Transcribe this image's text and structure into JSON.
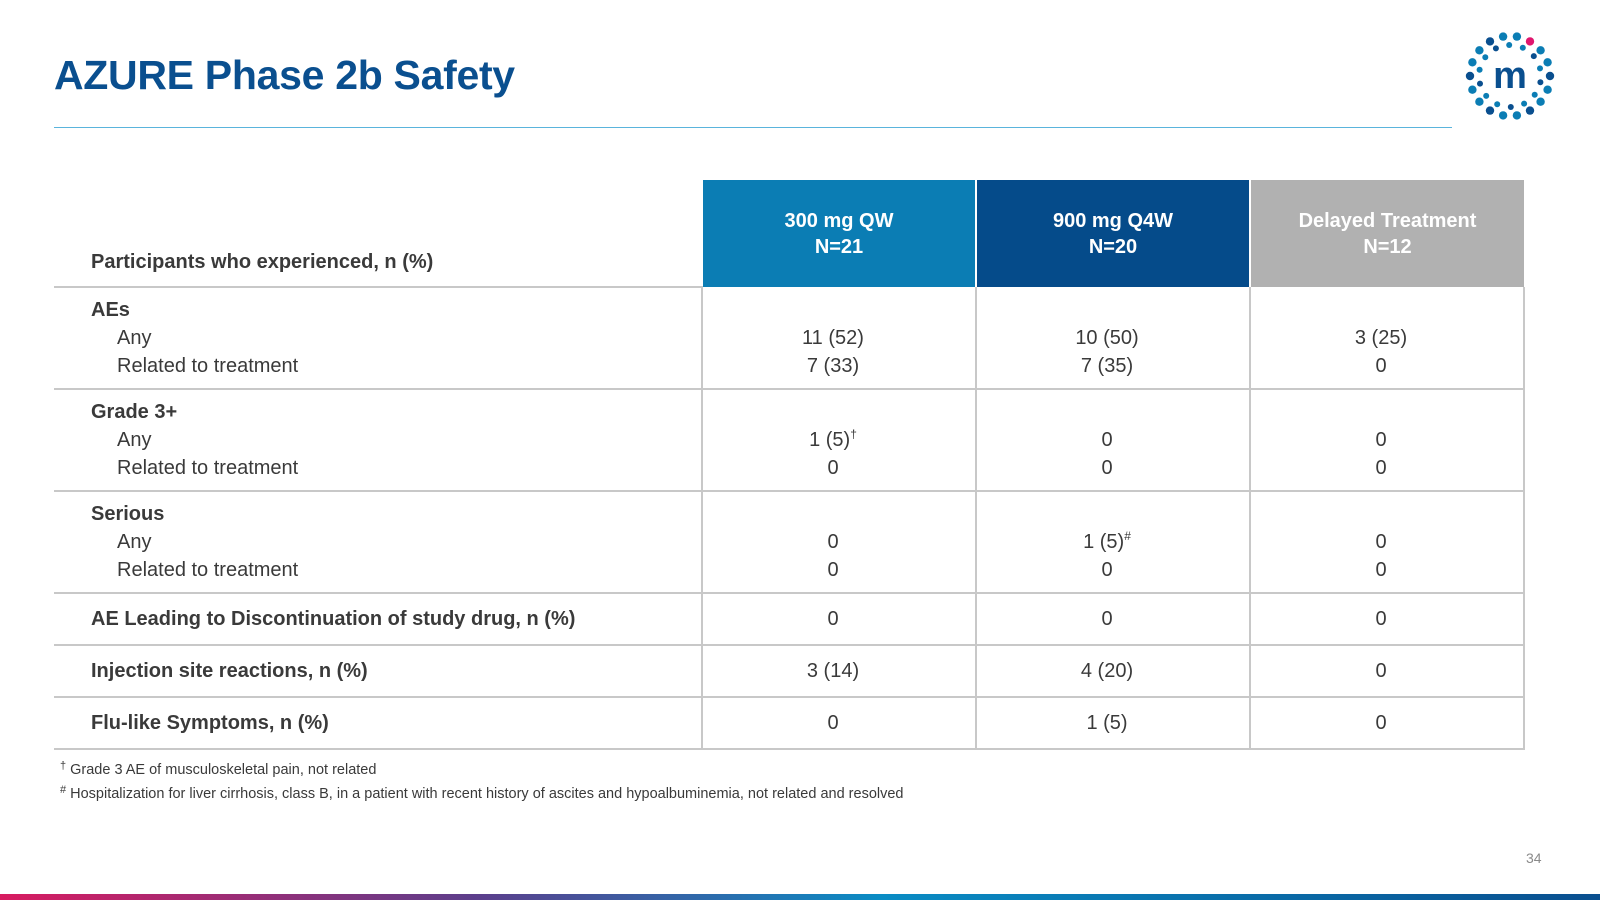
{
  "title": "AZURE Phase 2b Safety",
  "page_number": "34",
  "logo": {
    "letter": "m",
    "dot_color": "#0b7db4",
    "accent_color": "#e0166e"
  },
  "table": {
    "header_label": "Participants who experienced, n (%)",
    "columns": [
      {
        "line1": "300 mg QW",
        "line2": "N=21"
      },
      {
        "line1": "900 mg Q4W",
        "line2": "N=20"
      },
      {
        "line1": "Delayed Treatment",
        "line2": "N=12"
      }
    ],
    "groups": [
      {
        "label": "AEs",
        "any_label": "Any",
        "related_label": "Related to treatment",
        "any": [
          {
            "value": "11 (52)",
            "mark": ""
          },
          {
            "value": "10 (50)",
            "mark": ""
          },
          {
            "value": "3 (25)",
            "mark": ""
          }
        ],
        "related": [
          "7 (33)",
          "7 (35)",
          "0"
        ]
      },
      {
        "label": "Grade 3+",
        "any_label": "Any",
        "related_label": "Related to treatment",
        "any": [
          {
            "value": "1 (5)",
            "mark": "†"
          },
          {
            "value": "0",
            "mark": ""
          },
          {
            "value": "0",
            "mark": ""
          }
        ],
        "related": [
          "0",
          "0",
          "0"
        ]
      },
      {
        "label": "Serious",
        "any_label": "Any",
        "related_label": "Related to treatment",
        "any": [
          {
            "value": "0",
            "mark": ""
          },
          {
            "value": "1 (5)",
            "mark": "#"
          },
          {
            "value": "0",
            "mark": ""
          }
        ],
        "related": [
          "0",
          "0",
          "0"
        ]
      }
    ],
    "single_rows": [
      {
        "label": "AE Leading to Discontinuation of study drug, n (%)",
        "values": [
          "0",
          "0",
          "0"
        ]
      },
      {
        "label": "Injection site reactions, n (%)",
        "values": [
          "3 (14)",
          "4 (20)",
          "0"
        ]
      },
      {
        "label": "Flu-like Symptoms, n (%)",
        "values": [
          "0",
          "1 (5)",
          "0"
        ]
      }
    ]
  },
  "footnotes": [
    {
      "mark": "†",
      "text": "Grade 3 AE of musculoskeletal pain, not related"
    },
    {
      "mark": "#",
      "text": "Hospitalization for liver cirrhosis, class B, in a patient with recent history of ascites and hypoalbuminemia, not related and resolved"
    }
  ],
  "colors": {
    "title": "#0a4f8f",
    "col1": "#0b7db4",
    "col2": "#054b8a",
    "col3": "#b1b1b1"
  }
}
